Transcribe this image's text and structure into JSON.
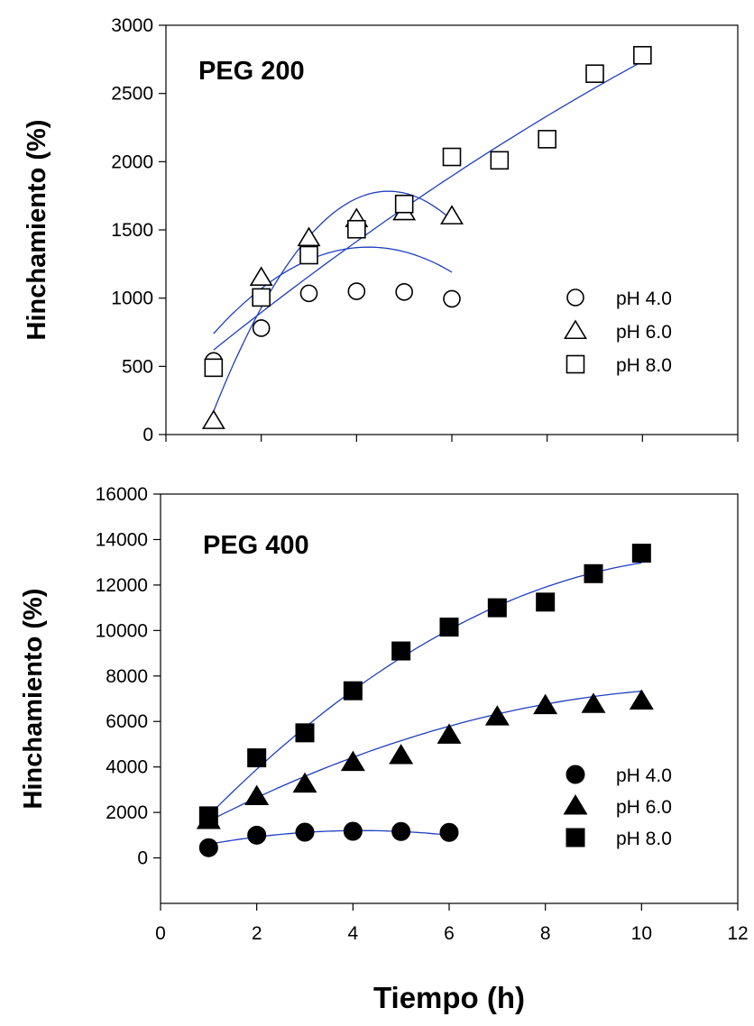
{
  "chart_data": [
    {
      "type": "scatter",
      "title": "PEG 200",
      "ylabel": "Hinchamiento (%)",
      "xlabel": "",
      "xlim": [
        0,
        12
      ],
      "ylim": [
        0,
        3000
      ],
      "yticks": [
        0,
        500,
        1000,
        1500,
        2000,
        2500,
        3000
      ],
      "xticks": [],
      "marker_fill": "open",
      "fit_color": "#1f3fbf",
      "legend_position": "right",
      "series": [
        {
          "name": "pH 4.0",
          "marker": "circle",
          "x": [
            1,
            2,
            3,
            4,
            5,
            6
          ],
          "y": [
            540,
            780,
            1035,
            1050,
            1045,
            995
          ],
          "fit": [
            290,
            510,
            -60
          ]
        },
        {
          "name": "pH 6.0",
          "marker": "triangle",
          "x": [
            1,
            2,
            3,
            4,
            5,
            6
          ],
          "y": [
            100,
            1150,
            1440,
            1580,
            1630,
            1600
          ],
          "fit": [
            -830,
            1120,
            -120
          ]
        },
        {
          "name": "pH 8.0",
          "marker": "square",
          "x": [
            1,
            2,
            3,
            4,
            5,
            6,
            7,
            8,
            9,
            10
          ],
          "y": [
            490,
            1005,
            1315,
            1505,
            1690,
            2035,
            2010,
            2165,
            2645,
            2780
          ],
          "fit": [
            335,
            290,
            -5
          ]
        }
      ]
    },
    {
      "type": "scatter",
      "title": "PEG 400",
      "ylabel": "Hinchamiento (%)",
      "xlabel": "Tiempo (h)",
      "xlim": [
        0,
        12
      ],
      "ylim": [
        -2000,
        16000
      ],
      "yticks": [
        0,
        2000,
        4000,
        6000,
        8000,
        10000,
        12000,
        14000,
        16000
      ],
      "xticks": [
        0,
        2,
        4,
        6,
        8,
        10,
        12
      ],
      "marker_fill": "filled",
      "fit_color": "#1f3fbf",
      "legend_position": "right",
      "series": [
        {
          "name": "pH 4.0",
          "marker": "circle",
          "x": [
            1,
            2,
            3,
            4,
            5,
            6
          ],
          "y": [
            450,
            1000,
            1130,
            1170,
            1160,
            1120
          ],
          "fit": [
            160,
            500,
            -60
          ]
        },
        {
          "name": "pH 6.0",
          "marker": "triangle",
          "x": [
            1,
            2,
            3,
            4,
            5,
            6,
            7,
            8,
            9,
            10
          ],
          "y": [
            1650,
            2700,
            3250,
            4200,
            4500,
            5400,
            6200,
            6700,
            6750,
            6900
          ],
          "fit": [
            480,
            1185,
            -50
          ]
        },
        {
          "name": "pH 8.0",
          "marker": "square",
          "x": [
            1,
            2,
            3,
            4,
            5,
            6,
            7,
            8,
            9,
            10
          ],
          "y": [
            1850,
            4400,
            5500,
            7350,
            9100,
            10150,
            11000,
            11250,
            12500,
            13400
          ],
          "fit": [
            -375,
            2335,
            -100
          ]
        }
      ]
    }
  ]
}
